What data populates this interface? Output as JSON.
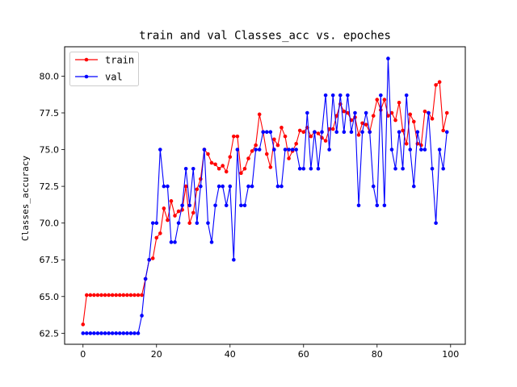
{
  "chart_data": {
    "type": "line",
    "title": "train and val Classes_acc vs. epoches",
    "xlabel": "",
    "ylabel": "Classes_accuracy",
    "xlim": [
      -5,
      104
    ],
    "ylim": [
      61.75,
      82.0
    ],
    "xticks": [
      0,
      20,
      40,
      60,
      80,
      100
    ],
    "yticks": [
      62.5,
      65.0,
      67.5,
      70.0,
      72.5,
      75.0,
      77.5,
      80.0
    ],
    "ytick_labels": [
      "62.5",
      "65.0",
      "67.5",
      "70.0",
      "72.5",
      "75.0",
      "77.5",
      "80.0"
    ],
    "xtick_labels": [
      "0",
      "20",
      "40",
      "60",
      "80",
      "100"
    ],
    "legend_position": "top-left",
    "grid": false,
    "x": [
      0,
      1,
      2,
      3,
      4,
      5,
      6,
      7,
      8,
      9,
      10,
      11,
      12,
      13,
      14,
      15,
      16,
      17,
      18,
      19,
      20,
      21,
      22,
      23,
      24,
      25,
      26,
      27,
      28,
      29,
      30,
      31,
      32,
      33,
      34,
      35,
      36,
      37,
      38,
      39,
      40,
      41,
      42,
      43,
      44,
      45,
      46,
      47,
      48,
      49,
      50,
      51,
      52,
      53,
      54,
      55,
      56,
      57,
      58,
      59,
      60,
      61,
      62,
      63,
      64,
      65,
      66,
      67,
      68,
      69,
      70,
      71,
      72,
      73,
      74,
      75,
      76,
      77,
      78,
      79,
      80,
      81,
      82,
      83,
      84,
      85,
      86,
      87,
      88,
      89,
      90,
      91,
      92,
      93,
      94,
      95,
      96,
      97,
      98,
      99
    ],
    "series": [
      {
        "name": "train",
        "color": "#ff0000",
        "values": [
          63.1,
          65.1,
          65.1,
          65.1,
          65.1,
          65.1,
          65.1,
          65.1,
          65.1,
          65.1,
          65.1,
          65.1,
          65.1,
          65.1,
          65.1,
          65.1,
          65.1,
          66.2,
          67.5,
          67.6,
          69.0,
          69.3,
          71.0,
          70.2,
          71.5,
          70.5,
          70.8,
          70.9,
          72.5,
          70.0,
          70.7,
          72.3,
          73.0,
          75.0,
          74.7,
          74.1,
          74.0,
          73.7,
          73.9,
          73.5,
          74.5,
          75.9,
          75.9,
          73.4,
          73.7,
          74.4,
          74.9,
          75.3,
          77.4,
          76.2,
          74.7,
          73.8,
          75.7,
          75.3,
          76.5,
          75.9,
          74.4,
          74.9,
          75.4,
          76.3,
          76.2,
          76.5,
          75.9,
          76.2,
          76.1,
          75.8,
          75.6,
          76.4,
          76.4,
          77.3,
          78.1,
          77.6,
          77.5,
          77.0,
          77.2,
          76.0,
          76.8,
          76.7,
          76.2,
          77.3,
          78.4,
          77.7,
          78.4,
          77.3,
          77.5,
          77.0,
          78.2,
          76.3,
          75.4,
          77.4,
          76.9,
          75.4,
          75.3,
          77.6,
          77.5,
          77.1,
          79.4,
          79.6,
          76.3,
          77.5
        ]
      },
      {
        "name": "val",
        "color": "#0000ff",
        "values": [
          62.5,
          62.5,
          62.5,
          62.5,
          62.5,
          62.5,
          62.5,
          62.5,
          62.5,
          62.5,
          62.5,
          62.5,
          62.5,
          62.5,
          62.5,
          62.5,
          63.7,
          66.2,
          67.5,
          70.0,
          70.0,
          75.0,
          72.5,
          72.5,
          68.7,
          68.7,
          70.0,
          71.2,
          73.7,
          71.2,
          73.7,
          70.0,
          72.5,
          75.0,
          70.0,
          68.7,
          71.2,
          72.5,
          72.5,
          71.2,
          72.5,
          67.5,
          75.0,
          71.2,
          71.2,
          72.5,
          72.5,
          75.0,
          75.0,
          76.2,
          76.2,
          76.2,
          75.0,
          72.5,
          72.5,
          75.0,
          75.0,
          75.0,
          75.0,
          73.7,
          73.7,
          77.5,
          73.7,
          76.2,
          73.7,
          76.2,
          78.7,
          75.0,
          78.7,
          76.2,
          78.7,
          76.2,
          78.7,
          76.2,
          77.5,
          71.2,
          76.2,
          77.5,
          76.2,
          72.5,
          71.2,
          78.7,
          71.2,
          81.2,
          75.0,
          73.7,
          76.2,
          73.7,
          78.7,
          75.0,
          72.5,
          76.2,
          75.0,
          75.0,
          77.5,
          73.7,
          70.0,
          75.0,
          73.7,
          76.2
        ]
      }
    ]
  }
}
